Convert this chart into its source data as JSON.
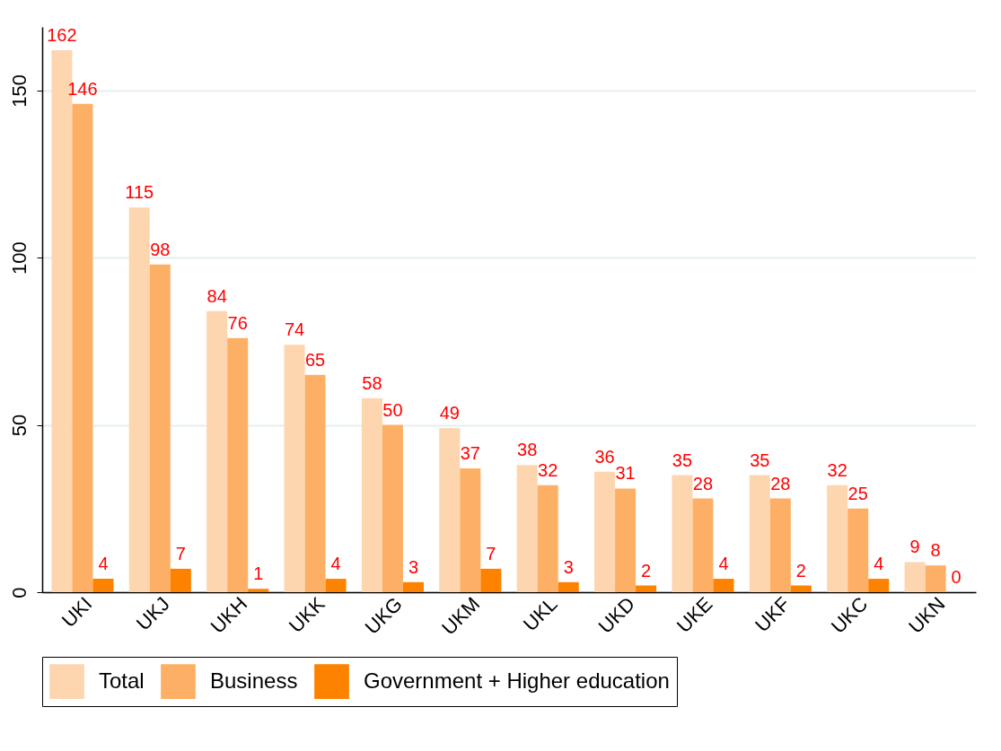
{
  "chart_data": {
    "type": "bar",
    "categories": [
      "UKI",
      "UKJ",
      "UKH",
      "UKK",
      "UKG",
      "UKM",
      "UKL",
      "UKD",
      "UKE",
      "UKF",
      "UKC",
      "UKN"
    ],
    "series": [
      {
        "name": "Total",
        "color": "#fdd6b0",
        "values": [
          162,
          115,
          84,
          74,
          58,
          49,
          38,
          36,
          35,
          35,
          32,
          9
        ]
      },
      {
        "name": "Business",
        "color": "#fdb065",
        "values": [
          146,
          98,
          76,
          65,
          50,
          37,
          32,
          31,
          28,
          28,
          25,
          8
        ]
      },
      {
        "name": "Government + Higher education",
        "color": "#fc8200",
        "values": [
          4,
          7,
          1,
          4,
          3,
          7,
          3,
          2,
          4,
          2,
          4,
          0
        ]
      }
    ],
    "ylim": [
      0,
      169
    ],
    "yticks": [
      0,
      50,
      100,
      150
    ],
    "grid": "y",
    "legend": "bottom",
    "data_labels": true
  }
}
